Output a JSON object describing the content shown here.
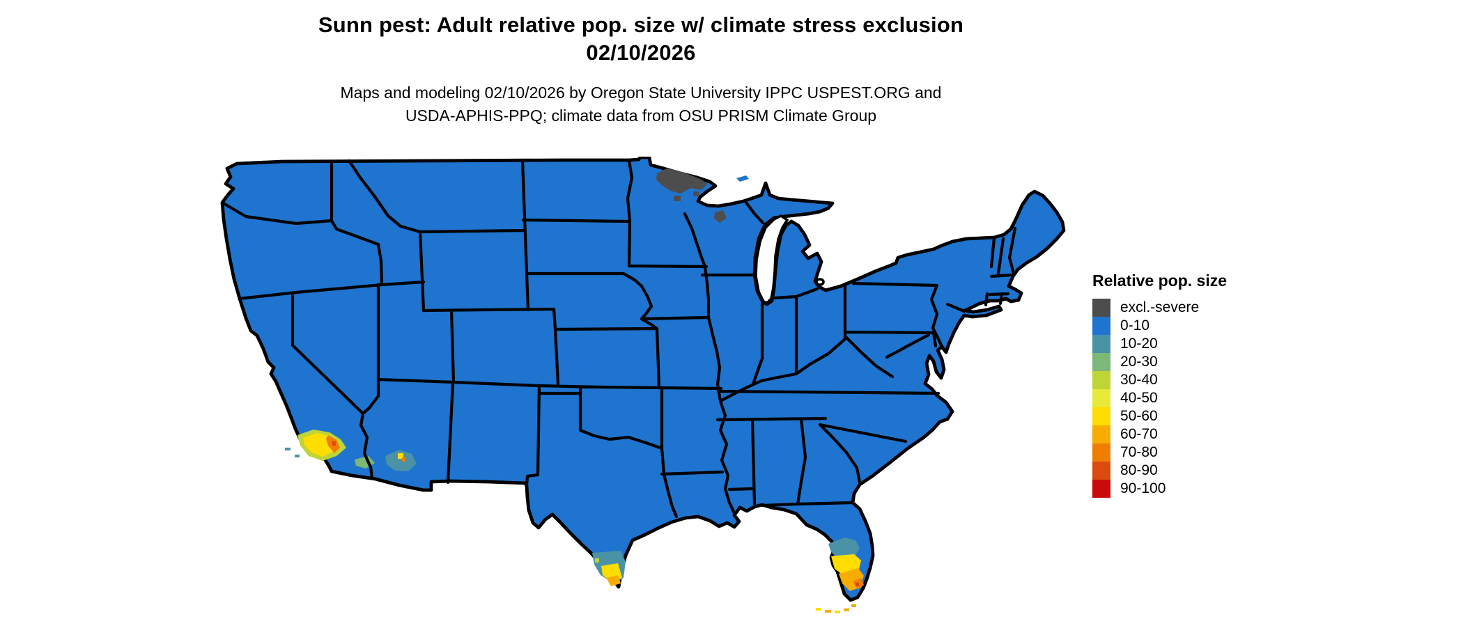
{
  "header": {
    "title_line1": "Sunn pest: Adult relative pop. size w/ climate stress exclusion",
    "title_line2": "02/10/2026",
    "subtitle_line1": "Maps and modeling 02/10/2026 by Oregon State University IPPC USPEST.ORG and",
    "subtitle_line2": "USDA-APHIS-PPQ; climate data from OSU PRISM Climate Group"
  },
  "legend": {
    "title": "Relative pop. size",
    "items": [
      {
        "label": "excl.-severe",
        "color": "#4D4D4D"
      },
      {
        "label": "0-10",
        "color": "#1E74CF"
      },
      {
        "label": "10-20",
        "color": "#4A92A5"
      },
      {
        "label": "20-30",
        "color": "#7CB878"
      },
      {
        "label": "30-40",
        "color": "#BFD437"
      },
      {
        "label": "40-50",
        "color": "#E9E93B"
      },
      {
        "label": "50-60",
        "color": "#FFDD00"
      },
      {
        "label": "60-70",
        "color": "#F6AD00"
      },
      {
        "label": "70-80",
        "color": "#EF7E00"
      },
      {
        "label": "80-90",
        "color": "#DB4A0F"
      },
      {
        "label": "90-100",
        "color": "#CB0B0B"
      }
    ]
  },
  "map": {
    "type": "choropleth",
    "area": "Contiguous United States with state boundaries",
    "background_color": "#FFFFFF",
    "border_color": "#000000",
    "base_category": "0-10",
    "regions": [
      {
        "area": "Most of the contiguous United States",
        "category": "0-10"
      },
      {
        "area": "Northern Minnesota (arrowhead)",
        "category": "excl.-severe"
      },
      {
        "area": "Northern Wisconsin (small patch)",
        "category": "excl.-severe"
      },
      {
        "area": "Southern California coast (LA basin)",
        "category": "30-60 with 60-80 pockets"
      },
      {
        "area": "Southwestern / central Arizona",
        "category": "10-30 with 40-70 pockets"
      },
      {
        "area": "South Texas lower Rio Grande Valley",
        "category": "10-20 grading to 50-70 at tip"
      },
      {
        "area": "Central Florida",
        "category": "10-20"
      },
      {
        "area": "South-central Florida",
        "category": "40-60"
      },
      {
        "area": "Southern Florida tip",
        "category": "60-90"
      },
      {
        "area": "Florida Keys",
        "category": "50-70"
      }
    ]
  }
}
